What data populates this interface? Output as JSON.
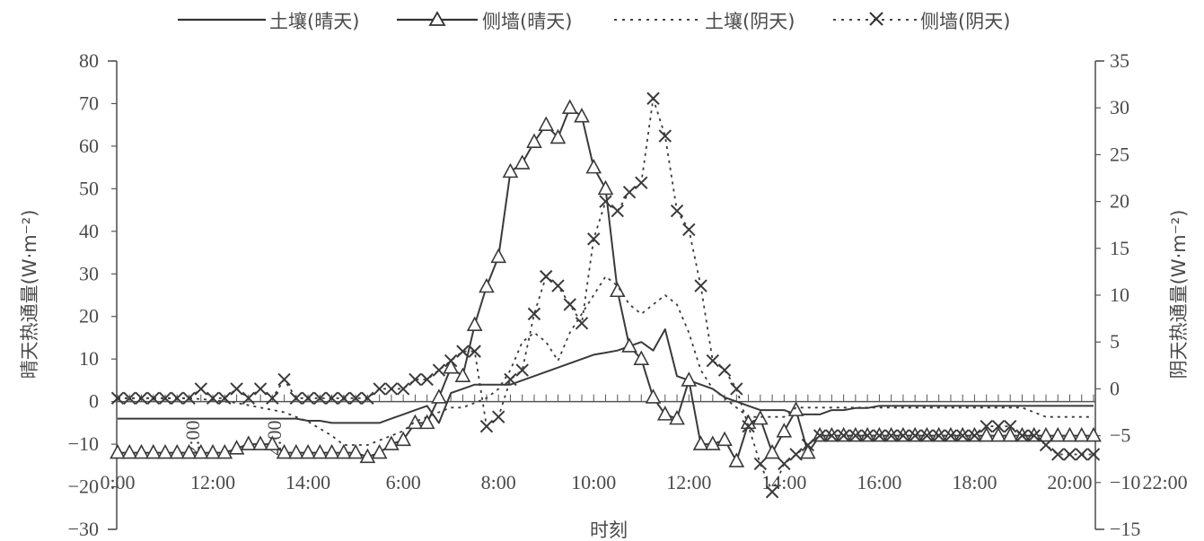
{
  "chart_data": {
    "type": "line",
    "title": "",
    "xlabel": "时刻",
    "ylabel_left": "晴天热通量(W·m⁻²)",
    "ylabel_right": "阴天热通量(W·m⁻²)",
    "y_left_lim": [
      -30,
      80
    ],
    "y_right_lim": [
      -15,
      35
    ],
    "y_left_ticks": [
      "-30",
      "-20",
      "-10",
      "0",
      "10",
      "20",
      "30",
      "40",
      "50",
      "60",
      "70",
      "80"
    ],
    "y_right_ticks": [
      "-15",
      "-10",
      "-5",
      "0",
      "5",
      "10",
      "15",
      "20",
      "25",
      "30",
      "35"
    ],
    "x_tick_labels": [
      "0:00",
      "12:00",
      "14:00",
      "6:00",
      "8:00",
      "10:00",
      "12:00",
      "14:00",
      "16:00",
      "18:00",
      "20:00",
      "22:00"
    ],
    "x_stray_labels": [
      "2:00",
      "4:00"
    ],
    "legend_position": "top",
    "series": [
      {
        "name": "土壤(晴天)",
        "axis": "left",
        "style": "solid",
        "marker": "none",
        "points": [
          [
            0,
            -4
          ],
          [
            1,
            -4
          ],
          [
            2,
            -4
          ],
          [
            3,
            -4
          ],
          [
            4,
            -4
          ],
          [
            5,
            -4
          ],
          [
            6,
            -4
          ],
          [
            7,
            -4
          ],
          [
            8,
            -4
          ],
          [
            9,
            -4
          ],
          [
            10,
            -4
          ],
          [
            11,
            -4
          ],
          [
            12,
            -4
          ],
          [
            13,
            -4
          ],
          [
            14,
            -4
          ],
          [
            15,
            -4
          ],
          [
            16,
            -4.5
          ],
          [
            17,
            -4.5
          ],
          [
            18,
            -5
          ],
          [
            19,
            -5
          ],
          [
            20,
            -5
          ],
          [
            21,
            -5
          ],
          [
            22,
            -5
          ],
          [
            23,
            -4
          ],
          [
            24,
            -3
          ],
          [
            25,
            -2
          ],
          [
            26,
            -1
          ],
          [
            27,
            -5
          ],
          [
            28,
            2
          ],
          [
            29,
            3
          ],
          [
            30,
            4
          ],
          [
            31,
            4
          ],
          [
            32,
            4
          ],
          [
            33,
            4
          ],
          [
            34,
            5
          ],
          [
            35,
            6
          ],
          [
            36,
            7
          ],
          [
            37,
            8
          ],
          [
            38,
            9
          ],
          [
            39,
            10
          ],
          [
            40,
            11
          ],
          [
            41,
            11.5
          ],
          [
            42,
            12
          ],
          [
            43,
            13
          ],
          [
            44,
            14
          ],
          [
            45,
            12
          ],
          [
            46,
            17
          ],
          [
            47,
            6
          ],
          [
            48,
            5
          ],
          [
            49,
            4
          ],
          [
            50,
            3
          ],
          [
            51,
            1
          ],
          [
            52,
            0
          ],
          [
            53,
            -1
          ],
          [
            54,
            -2
          ],
          [
            55,
            -2
          ],
          [
            56,
            -2
          ],
          [
            57,
            -3
          ],
          [
            58,
            -3
          ],
          [
            59,
            -3
          ],
          [
            60,
            -2
          ],
          [
            61,
            -2
          ],
          [
            62,
            -1.5
          ],
          [
            63,
            -1.5
          ],
          [
            64,
            -1
          ],
          [
            65,
            -1
          ],
          [
            66,
            -1
          ],
          [
            67,
            -1
          ],
          [
            68,
            -1
          ],
          [
            69,
            -1
          ],
          [
            70,
            -1
          ],
          [
            71,
            -1
          ],
          [
            72,
            -1
          ],
          [
            73,
            -1
          ],
          [
            74,
            -1
          ],
          [
            75,
            -1
          ],
          [
            76,
            -1
          ],
          [
            77,
            -1
          ],
          [
            78,
            -1
          ],
          [
            79,
            -1
          ],
          [
            80,
            -1
          ],
          [
            81,
            -1
          ],
          [
            82,
            -1
          ]
        ]
      },
      {
        "name": "侧墙(晴天)",
        "axis": "left",
        "style": "solid",
        "marker": "triangle",
        "points": [
          [
            0,
            -12
          ],
          [
            1,
            -12
          ],
          [
            2,
            -12
          ],
          [
            3,
            -12
          ],
          [
            4,
            -12
          ],
          [
            5,
            -12
          ],
          [
            6,
            -12
          ],
          [
            7,
            -12
          ],
          [
            8,
            -12
          ],
          [
            9,
            -12
          ],
          [
            10,
            -11
          ],
          [
            11,
            -10
          ],
          [
            12,
            -10
          ],
          [
            13,
            -10
          ],
          [
            14,
            -12
          ],
          [
            15,
            -12
          ],
          [
            16,
            -12
          ],
          [
            17,
            -12
          ],
          [
            18,
            -12
          ],
          [
            19,
            -12
          ],
          [
            20,
            -12
          ],
          [
            21,
            -13
          ],
          [
            22,
            -12
          ],
          [
            23,
            -10
          ],
          [
            24,
            -9
          ],
          [
            25,
            -5
          ],
          [
            26,
            -5
          ],
          [
            27,
            1
          ],
          [
            28,
            8
          ],
          [
            29,
            6
          ],
          [
            30,
            18
          ],
          [
            31,
            27
          ],
          [
            32,
            34
          ],
          [
            33,
            54
          ],
          [
            34,
            56
          ],
          [
            35,
            61
          ],
          [
            36,
            65
          ],
          [
            37,
            62
          ],
          [
            38,
            69
          ],
          [
            39,
            67
          ],
          [
            40,
            55
          ],
          [
            41,
            50
          ],
          [
            42,
            26
          ],
          [
            43,
            13
          ],
          [
            44,
            10
          ],
          [
            45,
            1
          ],
          [
            46,
            -3
          ],
          [
            47,
            -4
          ],
          [
            48,
            5
          ],
          [
            49,
            -10
          ],
          [
            50,
            -10
          ],
          [
            51,
            -9
          ],
          [
            52,
            -14
          ],
          [
            53,
            -5
          ],
          [
            54,
            -4
          ],
          [
            55,
            -12
          ],
          [
            56,
            -7
          ],
          [
            57,
            -2
          ],
          [
            58,
            -12
          ],
          [
            59,
            -8
          ],
          [
            60,
            -8
          ],
          [
            61,
            -8
          ],
          [
            62,
            -8
          ],
          [
            63,
            -8
          ],
          [
            64,
            -8
          ],
          [
            65,
            -8
          ],
          [
            66,
            -8
          ],
          [
            67,
            -8
          ],
          [
            68,
            -8
          ],
          [
            69,
            -8
          ],
          [
            70,
            -8
          ],
          [
            71,
            -8
          ],
          [
            72,
            -8
          ],
          [
            73,
            -8
          ],
          [
            74,
            -8
          ],
          [
            75,
            -8
          ],
          [
            76,
            -8
          ],
          [
            77,
            -8
          ],
          [
            78,
            -8
          ],
          [
            79,
            -8
          ],
          [
            80,
            -8
          ],
          [
            81,
            -8
          ],
          [
            82,
            -8
          ]
        ]
      },
      {
        "name": "土壤(阴天)",
        "axis": "right",
        "style": "dotted",
        "marker": "none",
        "points": [
          [
            0,
            -1
          ],
          [
            2,
            -1
          ],
          [
            4,
            -1
          ],
          [
            6,
            -1
          ],
          [
            8,
            -1.2
          ],
          [
            10,
            -1.5
          ],
          [
            12,
            -2
          ],
          [
            14,
            -2.5
          ],
          [
            16,
            -3.5
          ],
          [
            18,
            -5
          ],
          [
            19,
            -6
          ],
          [
            20,
            -6
          ],
          [
            21,
            -6
          ],
          [
            22,
            -5.5
          ],
          [
            23,
            -5
          ],
          [
            24,
            -4.5
          ],
          [
            25,
            -3.5
          ],
          [
            26,
            -3
          ],
          [
            27,
            -2.5
          ],
          [
            28,
            -2
          ],
          [
            29,
            -2
          ],
          [
            30,
            -1.5
          ],
          [
            31,
            -1
          ],
          [
            32,
            0
          ],
          [
            33,
            2
          ],
          [
            34,
            5
          ],
          [
            35,
            6
          ],
          [
            36,
            5
          ],
          [
            37,
            3
          ],
          [
            38,
            6
          ],
          [
            39,
            8
          ],
          [
            40,
            10
          ],
          [
            41,
            12
          ],
          [
            42,
            11
          ],
          [
            43,
            9
          ],
          [
            44,
            8
          ],
          [
            45,
            9
          ],
          [
            46,
            10
          ],
          [
            47,
            9
          ],
          [
            48,
            6
          ],
          [
            49,
            2
          ],
          [
            50,
            0
          ],
          [
            51,
            -1
          ],
          [
            52,
            -2
          ],
          [
            53,
            -3
          ],
          [
            54,
            -3
          ],
          [
            55,
            -3
          ],
          [
            56,
            -3
          ],
          [
            57,
            -2
          ],
          [
            58,
            -2
          ],
          [
            60,
            -2
          ],
          [
            62,
            -2
          ],
          [
            64,
            -2
          ],
          [
            66,
            -2
          ],
          [
            68,
            -2
          ],
          [
            70,
            -2
          ],
          [
            72,
            -2
          ],
          [
            74,
            -2
          ],
          [
            76,
            -2
          ],
          [
            78,
            -3
          ],
          [
            80,
            -3
          ],
          [
            82,
            -3
          ]
        ]
      },
      {
        "name": "侧墙(阴天)",
        "axis": "right",
        "style": "dotted",
        "marker": "cross",
        "points": [
          [
            0,
            -1
          ],
          [
            1,
            -1
          ],
          [
            2,
            -1
          ],
          [
            3,
            -1
          ],
          [
            4,
            -1
          ],
          [
            5,
            -1
          ],
          [
            6,
            -1
          ],
          [
            7,
            0
          ],
          [
            8,
            -1
          ],
          [
            9,
            -1
          ],
          [
            10,
            0
          ],
          [
            11,
            -1
          ],
          [
            12,
            0
          ],
          [
            13,
            -1
          ],
          [
            14,
            1
          ],
          [
            15,
            -1
          ],
          [
            16,
            -1
          ],
          [
            17,
            -1
          ],
          [
            18,
            -1
          ],
          [
            19,
            -1
          ],
          [
            20,
            -1
          ],
          [
            21,
            -1
          ],
          [
            22,
            0
          ],
          [
            23,
            0
          ],
          [
            24,
            0
          ],
          [
            25,
            1
          ],
          [
            26,
            1
          ],
          [
            27,
            2
          ],
          [
            28,
            3
          ],
          [
            29,
            4
          ],
          [
            30,
            4
          ],
          [
            31,
            -4
          ],
          [
            32,
            -3
          ],
          [
            33,
            1
          ],
          [
            34,
            2
          ],
          [
            35,
            8
          ],
          [
            36,
            12
          ],
          [
            37,
            11
          ],
          [
            38,
            9
          ],
          [
            39,
            7
          ],
          [
            40,
            16
          ],
          [
            41,
            20
          ],
          [
            42,
            19
          ],
          [
            43,
            21
          ],
          [
            44,
            22
          ],
          [
            45,
            31
          ],
          [
            46,
            27
          ],
          [
            47,
            19
          ],
          [
            48,
            17
          ],
          [
            49,
            11
          ],
          [
            50,
            3
          ],
          [
            51,
            2
          ],
          [
            52,
            0
          ],
          [
            53,
            -4
          ],
          [
            54,
            -8
          ],
          [
            55,
            -11
          ],
          [
            56,
            -8
          ],
          [
            57,
            -7
          ],
          [
            58,
            -6
          ],
          [
            59,
            -5
          ],
          [
            60,
            -5
          ],
          [
            61,
            -5
          ],
          [
            62,
            -5
          ],
          [
            63,
            -5
          ],
          [
            64,
            -5
          ],
          [
            65,
            -5
          ],
          [
            66,
            -5
          ],
          [
            67,
            -5
          ],
          [
            68,
            -5
          ],
          [
            69,
            -5
          ],
          [
            70,
            -5
          ],
          [
            71,
            -5
          ],
          [
            72,
            -5
          ],
          [
            73,
            -4
          ],
          [
            74,
            -4
          ],
          [
            75,
            -4
          ],
          [
            76,
            -5
          ],
          [
            77,
            -5
          ],
          [
            78,
            -6
          ],
          [
            79,
            -7
          ],
          [
            80,
            -7
          ],
          [
            81,
            -7
          ],
          [
            82,
            -7
          ]
        ]
      }
    ]
  }
}
